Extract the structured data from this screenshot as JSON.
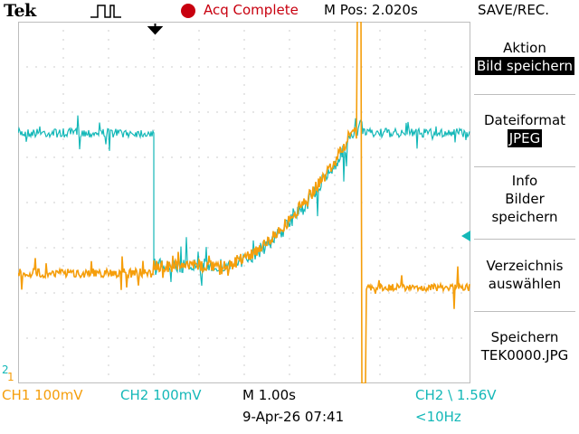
{
  "header": {
    "brand": "Tek",
    "trigger_icon": "pulse-waveform-icon",
    "acq_status": "Acq Complete",
    "m_pos": "M Pos: 2.020s",
    "menu_title": "SAVE/REC."
  },
  "side_menu": {
    "items": [
      {
        "label": "Aktion",
        "value": "Bild speichern",
        "selected": true
      },
      {
        "label": "Dateiformat",
        "value": "JPEG",
        "selected": true
      },
      {
        "label": "Info",
        "value": "Bilder\nspeichern",
        "selected": false
      },
      {
        "label": "Verzeichnis",
        "value": "auswählen",
        "selected": false
      },
      {
        "label": "Speichern",
        "value": "TEK0000.JPG",
        "selected": false
      }
    ]
  },
  "status": {
    "ch1": "CH1  100mV",
    "ch2": "CH2  100mV",
    "timebase": "M 1.00s",
    "datetime": "9-Apr-26 07:41",
    "trigger": "CH2 \\ 1.56V",
    "freq": "<10Hz"
  },
  "markers": {
    "ch2_marker": "2",
    "ch1_marker": "1"
  },
  "colors": {
    "ch1": "#f59e0b",
    "ch2": "#14b8b8",
    "acq": "#c8000f",
    "grid": "#9a9a9a"
  }
}
